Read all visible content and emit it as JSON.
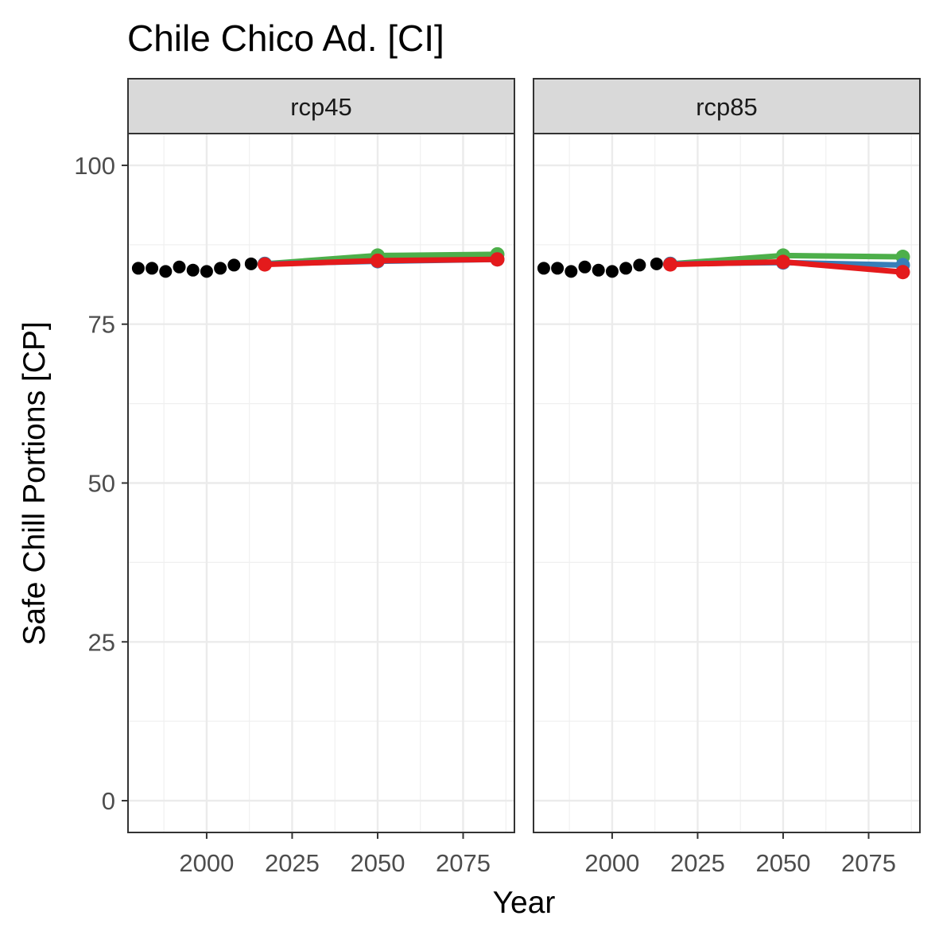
{
  "chart_data": {
    "type": "line",
    "title": "Chile Chico Ad. [CI]",
    "xlabel": "Year",
    "ylabel": "Safe Chill Portions [CP]",
    "xlim": [
      1977,
      2090
    ],
    "ylim": [
      -5,
      105
    ],
    "x_ticks": [
      2000,
      2025,
      2050,
      2075
    ],
    "y_ticks": [
      0,
      25,
      50,
      75,
      100
    ],
    "grid": true,
    "panels": [
      {
        "label": "rcp45",
        "observed": {
          "color": "#000000",
          "x": [
            1980,
            1984,
            1988,
            1992,
            1996,
            2000,
            2004,
            2008,
            2013
          ],
          "y": [
            83.8,
            83.8,
            83.3,
            84.0,
            83.5,
            83.3,
            83.8,
            84.3,
            84.5
          ]
        },
        "series": [
          {
            "color": "#4DAF4A",
            "x": [
              2017,
              2050,
              2085
            ],
            "y": [
              84.5,
              85.8,
              86.0
            ]
          },
          {
            "color": "#377EB8",
            "x": [
              2017,
              2050,
              2085
            ],
            "y": [
              84.5,
              84.9,
              85.2
            ]
          },
          {
            "color": "#E41A1C",
            "x": [
              2017,
              2050,
              2085
            ],
            "y": [
              84.4,
              85.0,
              85.2
            ]
          }
        ]
      },
      {
        "label": "rcp85",
        "observed": {
          "color": "#000000",
          "x": [
            1980,
            1984,
            1988,
            1992,
            1996,
            2000,
            2004,
            2008,
            2013
          ],
          "y": [
            83.8,
            83.8,
            83.3,
            84.0,
            83.5,
            83.3,
            83.8,
            84.3,
            84.5
          ]
        },
        "series": [
          {
            "color": "#4DAF4A",
            "x": [
              2017,
              2050,
              2085
            ],
            "y": [
              84.5,
              85.8,
              85.6
            ]
          },
          {
            "color": "#377EB8",
            "x": [
              2017,
              2050,
              2085
            ],
            "y": [
              84.5,
              84.7,
              84.3
            ]
          },
          {
            "color": "#E41A1C",
            "x": [
              2017,
              2050,
              2085
            ],
            "y": [
              84.4,
              84.8,
              83.2
            ]
          }
        ]
      }
    ]
  }
}
